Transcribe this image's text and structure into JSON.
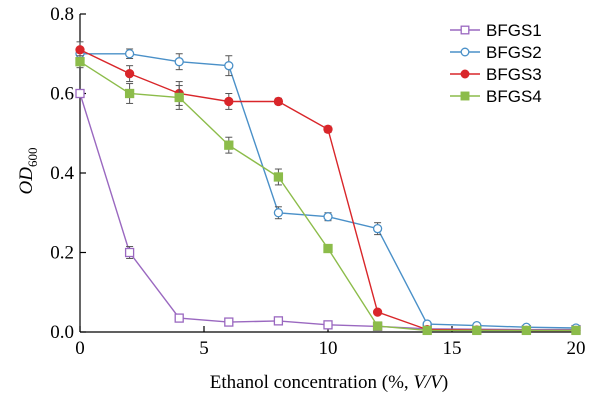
{
  "chart_data": {
    "type": "line",
    "title": "",
    "xlabel": {
      "prefix": "Ethanol concentration (%, ",
      "italic": "V/V",
      "suffix": ")"
    },
    "ylabel": {
      "italic": "OD",
      "subscript": "600"
    },
    "xlim": [
      0,
      20
    ],
    "ylim": [
      0,
      0.8
    ],
    "xticks": [
      0,
      5,
      10,
      15,
      20
    ],
    "xtick_labels": [
      "0",
      "5",
      "10",
      "15",
      "20"
    ],
    "yticks": [
      0.0,
      0.2,
      0.4,
      0.6,
      0.8
    ],
    "ytick_labels": [
      "0.0",
      "0.2",
      "0.4",
      "0.6",
      "0.8"
    ],
    "grid": false,
    "legend_position": "top-right",
    "series": [
      {
        "name": "BFGS1",
        "color": "#9a68c0",
        "marker": "square-open",
        "x": [
          0,
          2,
          4,
          6,
          8,
          10,
          12,
          14,
          16,
          18,
          20
        ],
        "y": [
          0.6,
          0.2,
          0.035,
          0.025,
          0.028,
          0.018,
          0.014,
          0.008,
          0.007,
          0.006,
          0.006
        ],
        "err": [
          0.01,
          0.015,
          0.006,
          0.006,
          0.006,
          0.005,
          0.004,
          0.003,
          0.003,
          0.003,
          0.003
        ]
      },
      {
        "name": "BFGS2",
        "color": "#4a90c8",
        "marker": "circle-open",
        "x": [
          0,
          2,
          4,
          6,
          8,
          10,
          12,
          14,
          16,
          18,
          20
        ],
        "y": [
          0.7,
          0.7,
          0.68,
          0.67,
          0.3,
          0.29,
          0.26,
          0.02,
          0.016,
          0.012,
          0.01
        ],
        "err": [
          0.01,
          0.012,
          0.02,
          0.025,
          0.015,
          0.01,
          0.015,
          0.005,
          0.006,
          0.004,
          0.004
        ]
      },
      {
        "name": "BFGS3",
        "color": "#d9262a",
        "marker": "circle-filled",
        "x": [
          0,
          2,
          4,
          6,
          8,
          10,
          12,
          14,
          16,
          18,
          20
        ],
        "y": [
          0.71,
          0.65,
          0.6,
          0.58,
          0.58,
          0.51,
          0.05,
          0.006,
          0.005,
          0.004,
          0.004
        ],
        "err": [
          0.02,
          0.02,
          0.03,
          0.02,
          0.008,
          0.008,
          0.005,
          0.002,
          0.002,
          0.002,
          0.002
        ]
      },
      {
        "name": "BFGS4",
        "color": "#8cbc4a",
        "marker": "square-filled",
        "x": [
          0,
          2,
          4,
          6,
          8,
          10,
          12,
          14,
          16,
          18,
          20
        ],
        "y": [
          0.68,
          0.6,
          0.59,
          0.47,
          0.39,
          0.21,
          0.015,
          0.004,
          0.004,
          0.004,
          0.004
        ],
        "err": [
          0.015,
          0.025,
          0.03,
          0.02,
          0.02,
          0.008,
          0.004,
          0.002,
          0.002,
          0.002,
          0.002
        ]
      }
    ]
  }
}
